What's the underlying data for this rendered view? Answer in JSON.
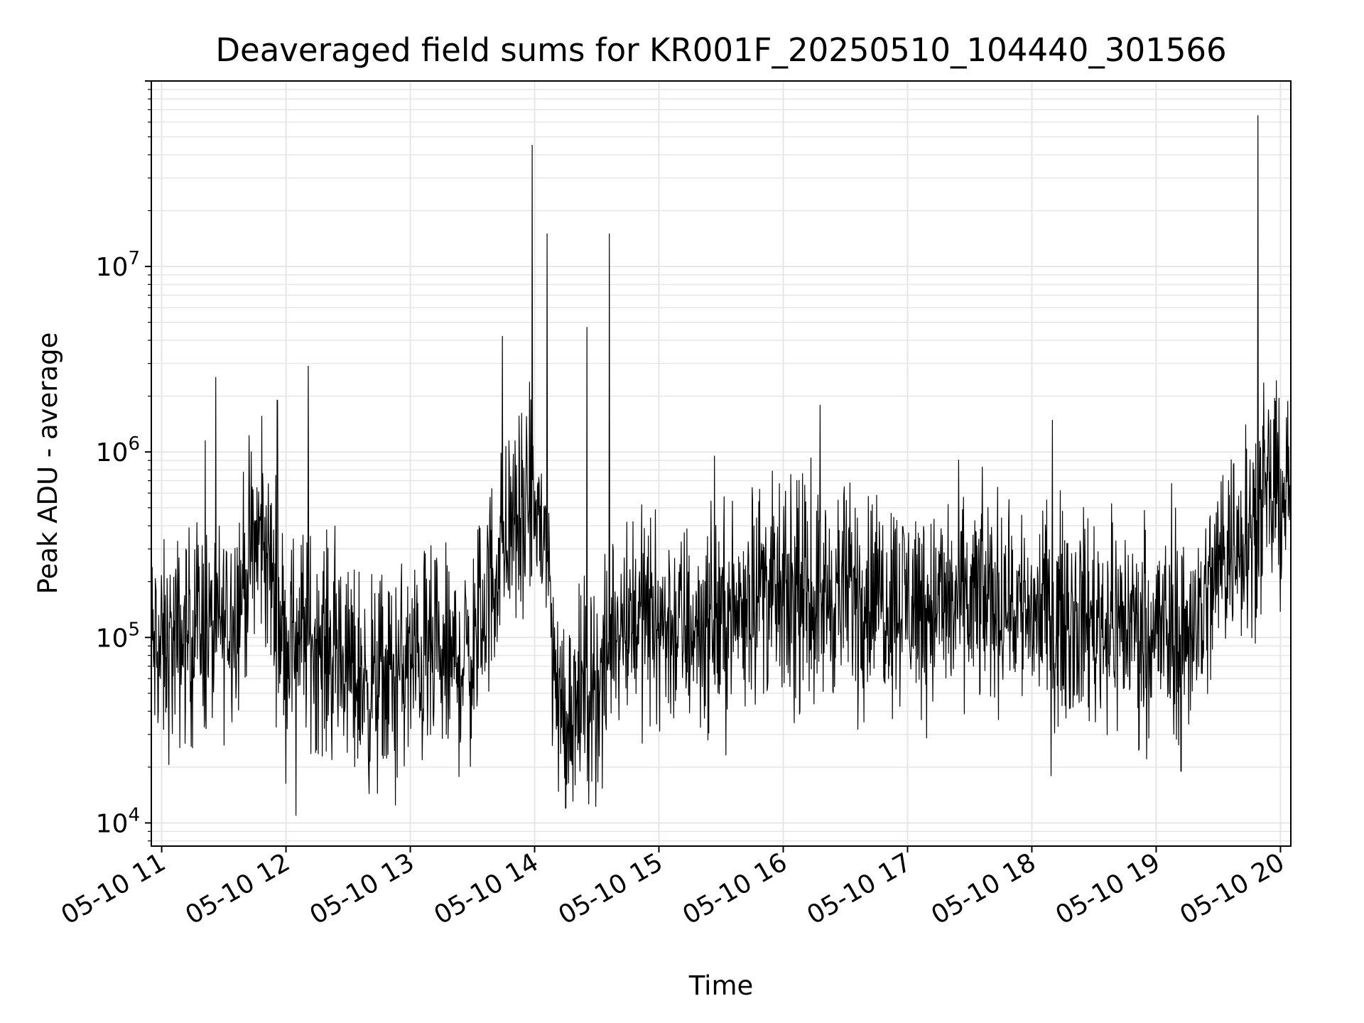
{
  "chart_data": {
    "type": "line",
    "title": "Deaveraged field sums for KR001F_20250510_104440_301566",
    "xlabel": "Time",
    "ylabel": "Peak ADU - average",
    "x_range": [
      "05-10 10:55",
      "05-10 20:05"
    ],
    "y_scale": "log",
    "ylim": [
      7500,
      100000000
    ],
    "grid": true,
    "line_color": "#000000",
    "grid_color": "#e6e6e6",
    "x_ticks": [
      "05-10 11",
      "05-10 12",
      "05-10 13",
      "05-10 14",
      "05-10 15",
      "05-10 16",
      "05-10 17",
      "05-10 18",
      "05-10 19",
      "05-10 20"
    ],
    "y_ticks": [
      {
        "base": "10",
        "exp": "4",
        "value": 10000
      },
      {
        "base": "10",
        "exp": "5",
        "value": 100000
      },
      {
        "base": "10",
        "exp": "6",
        "value": 1000000
      },
      {
        "base": "10",
        "exp": "7",
        "value": 10000000
      }
    ],
    "series": [
      {
        "x_hours": [
          10.92,
          11.0,
          11.1,
          11.2,
          11.3,
          11.4,
          11.5,
          11.6,
          11.7,
          11.8,
          11.9,
          12.0,
          12.1,
          12.2,
          12.3,
          12.4,
          12.5,
          12.6,
          12.7,
          12.8,
          12.9,
          13.0,
          13.1,
          13.2,
          13.3,
          13.4,
          13.5,
          13.6,
          13.7,
          13.8,
          13.9,
          14.0,
          14.1,
          14.15,
          14.2,
          14.3,
          14.4,
          14.5,
          14.6,
          14.62,
          14.7,
          14.8,
          14.9,
          15.0,
          15.2,
          15.4,
          15.6,
          15.8,
          16.0,
          16.2,
          16.4,
          16.6,
          16.8,
          17.0,
          17.2,
          17.4,
          17.6,
          17.8,
          18.0,
          18.2,
          18.4,
          18.6,
          18.8,
          19.0,
          19.2,
          19.4,
          19.55,
          19.7,
          19.8,
          19.9,
          20.0,
          20.08
        ],
        "median_values": [
          90000,
          80000,
          90000,
          100000,
          120000,
          100000,
          120000,
          150000,
          250000,
          350000,
          200000,
          90000,
          110000,
          100000,
          90000,
          80000,
          70000,
          60000,
          55000,
          60000,
          65000,
          70000,
          75000,
          72000,
          70000,
          75000,
          80000,
          150000,
          250000,
          400000,
          400000,
          500000,
          300000,
          80000,
          40000,
          45000,
          50000,
          55000,
          60000,
          120000,
          130000,
          140000,
          130000,
          120000,
          110000,
          120000,
          130000,
          200000,
          150000,
          160000,
          170000,
          180000,
          170000,
          160000,
          150000,
          150000,
          160000,
          160000,
          140000,
          130000,
          130000,
          120000,
          120000,
          110000,
          100000,
          150000,
          300000,
          350000,
          450000,
          550000,
          600000,
          650000
        ],
        "spikes": [
          {
            "x_hours": 11.35,
            "value": 1150000
          },
          {
            "x_hours": 11.93,
            "value": 1900000
          },
          {
            "x_hours": 12.18,
            "value": 2900000
          },
          {
            "x_hours": 12.08,
            "value": 11000
          },
          {
            "x_hours": 12.88,
            "value": 12500
          },
          {
            "x_hours": 13.74,
            "value": 4200000
          },
          {
            "x_hours": 13.98,
            "value": 45000000
          },
          {
            "x_hours": 14.1,
            "value": 15000000
          },
          {
            "x_hours": 14.42,
            "value": 4700000
          },
          {
            "x_hours": 14.6,
            "value": 15000000
          },
          {
            "x_hours": 14.25,
            "value": 12000
          },
          {
            "x_hours": 16.6,
            "value": 32000
          },
          {
            "x_hours": 19.2,
            "value": 19000
          },
          {
            "x_hours": 19.72,
            "value": 1400000
          },
          {
            "x_hours": 19.82,
            "value": 65000000
          }
        ]
      }
    ]
  }
}
